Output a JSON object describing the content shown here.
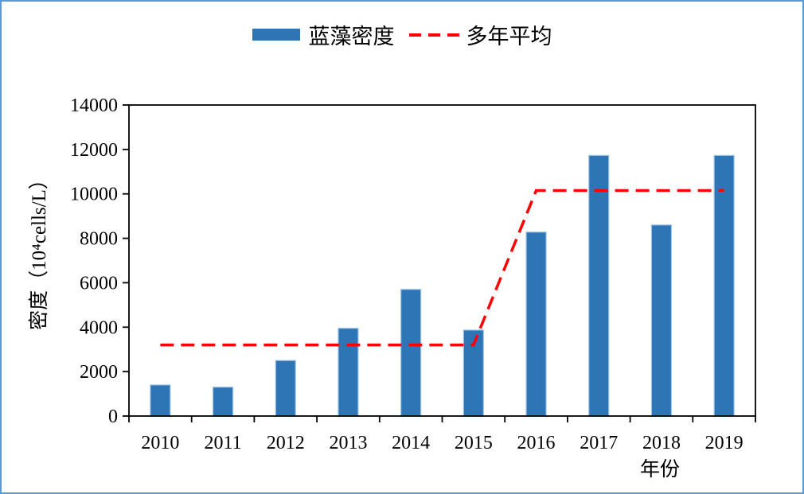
{
  "window": {
    "background_color": "#FFFFFF",
    "border_color": "#5B9BD5"
  },
  "chart_data": {
    "type": "bar",
    "title": "",
    "categories": [
      "2010",
      "2011",
      "2012",
      "2013",
      "2014",
      "2015",
      "2016",
      "2017",
      "2018",
      "2019"
    ],
    "series": [
      {
        "name": "蓝藻密度",
        "type": "bar",
        "color": "#2E75B6",
        "edge_color": "#9DC3E6",
        "values": [
          1400,
          1300,
          2500,
          3950,
          5700,
          3870,
          8280,
          11730,
          8600,
          11730
        ]
      },
      {
        "name": "多年平均",
        "type": "line",
        "style": "dashed",
        "color": "#FF0000",
        "values": [
          3200,
          3200,
          3200,
          3200,
          3200,
          3200,
          10150,
          10150,
          10150,
          10150
        ]
      }
    ],
    "xlabel": "年份",
    "ylabel": "密度（10⁴cells/L）",
    "ylim": [
      0,
      14000
    ],
    "yticks": [
      0,
      2000,
      4000,
      6000,
      8000,
      10000,
      12000,
      14000
    ],
    "grid": false,
    "legend_position": "top-center",
    "axis_color": "#000000",
    "tick_label_color": "#000000"
  }
}
